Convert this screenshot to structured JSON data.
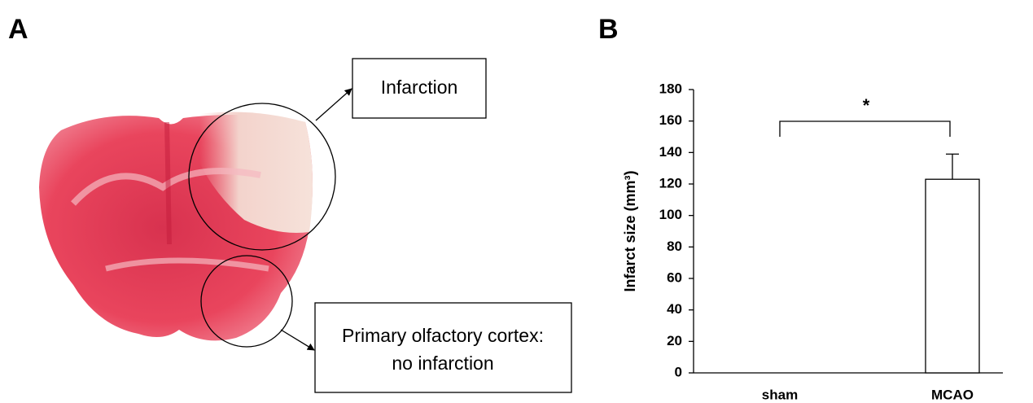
{
  "panels": {
    "a_label": "A",
    "b_label": "B"
  },
  "annotations": {
    "infarction": "Infarction",
    "olfactory": [
      "Primary olfactory cortex:",
      "no infarction"
    ]
  },
  "chart_data": {
    "type": "bar",
    "ylabel": "Infarct size (mm³)",
    "categories": [
      "sham",
      "MCAO"
    ],
    "values": [
      0,
      123
    ],
    "errors": [
      null,
      16
    ],
    "color": "#ffffff",
    "edge_color": "#000000",
    "ylim": [
      0,
      180
    ],
    "yticks": [
      0,
      20,
      40,
      60,
      80,
      100,
      120,
      140,
      160,
      180
    ],
    "grid": false,
    "significance": "*"
  }
}
